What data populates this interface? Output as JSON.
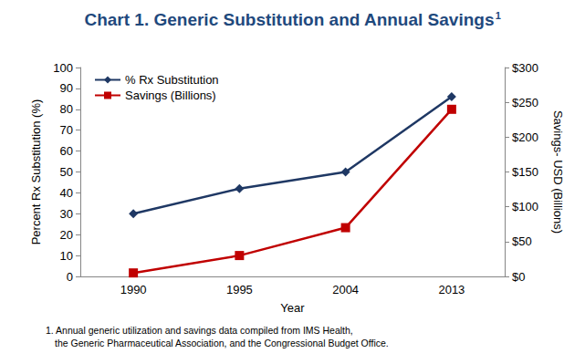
{
  "chart_data": {
    "type": "line",
    "title": "Chart 1. Generic Substitution and Annual Savings",
    "title_superscript": "1",
    "x_label": "Year",
    "y_label": "Percent Rx Substitution (%)",
    "y2_label": "Savings- USD (Billions)",
    "categories": [
      "1990",
      "1995",
      "2004",
      "2013"
    ],
    "series": [
      {
        "name": "% Rx Substitution",
        "color": "#1f3864",
        "marker": "diamond",
        "values": [
          30,
          42,
          50,
          86
        ]
      },
      {
        "name": "Savings (Billions)",
        "color": "#c00000",
        "marker": "square",
        "axis": "y2",
        "values": [
          5,
          30,
          70,
          240
        ]
      }
    ],
    "ylim": [
      0,
      100
    ],
    "yticks": [
      0,
      10,
      20,
      30,
      40,
      50,
      60,
      70,
      80,
      90,
      100
    ],
    "y2lim": [
      0,
      300
    ],
    "y2ticks": [
      {
        "value": 0,
        "label": "$0"
      },
      {
        "value": 50,
        "label": "$50"
      },
      {
        "value": 100,
        "label": "$100"
      },
      {
        "value": 150,
        "label": "$150"
      },
      {
        "value": 200,
        "label": "$200"
      },
      {
        "value": 250,
        "label": "$250"
      },
      {
        "value": 300,
        "label": "$300"
      }
    ],
    "grid": false,
    "legend": "top-left",
    "footnote": [
      "1. Annual generic utilization and savings data compiled from IMS Health,",
      "the Generic Pharmaceutical Association, and the Congressional Budget Office."
    ]
  }
}
